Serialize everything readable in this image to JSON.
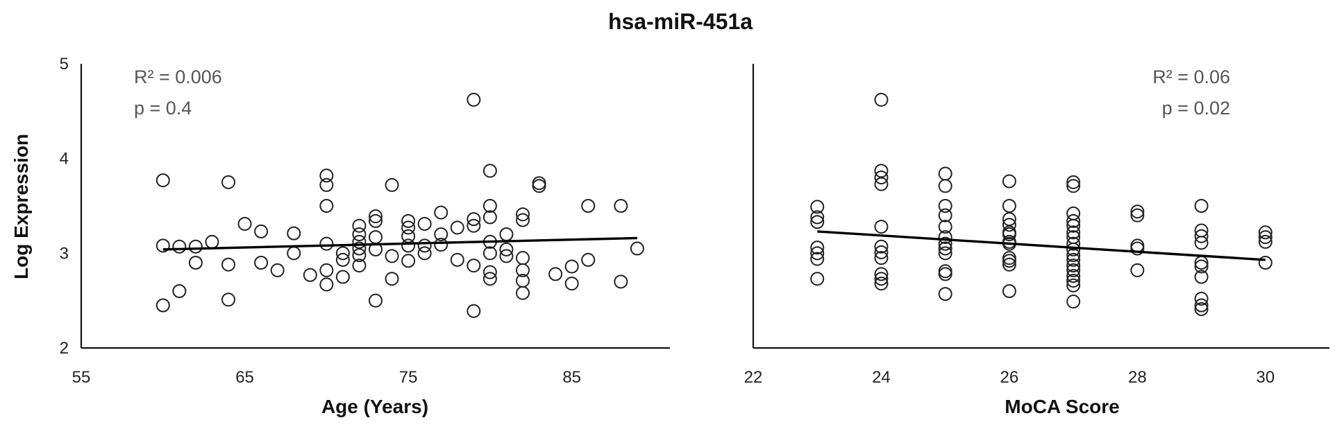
{
  "title": "hsa-miR-451a",
  "chart_data": [
    {
      "type": "scatter",
      "panel": "left",
      "xlabel": "Age (Years)",
      "ylabel": "Log Expression",
      "xlim": [
        55,
        91
      ],
      "ylim": [
        2,
        5
      ],
      "xticks": [
        55,
        65,
        75,
        85
      ],
      "yticks": [
        2,
        3,
        4,
        5
      ],
      "annotation": [
        "R² = 0.006",
        "p = 0.4"
      ],
      "trendline": [
        [
          60,
          3.04
        ],
        [
          89,
          3.16
        ]
      ],
      "points": [
        [
          60,
          3.77
        ],
        [
          60,
          3.08
        ],
        [
          60,
          2.45
        ],
        [
          61,
          3.07
        ],
        [
          61,
          2.6
        ],
        [
          62,
          3.07
        ],
        [
          62,
          2.9
        ],
        [
          63,
          3.12
        ],
        [
          64,
          3.75
        ],
        [
          64,
          2.88
        ],
        [
          64,
          2.51
        ],
        [
          65,
          3.31
        ],
        [
          66,
          3.23
        ],
        [
          66,
          2.9
        ],
        [
          67,
          2.82
        ],
        [
          68,
          3.21
        ],
        [
          68,
          3.0
        ],
        [
          69,
          2.77
        ],
        [
          70,
          3.82
        ],
        [
          70,
          3.72
        ],
        [
          70,
          3.5
        ],
        [
          70,
          3.1
        ],
        [
          70,
          2.82
        ],
        [
          70,
          2.67
        ],
        [
          71,
          3.0
        ],
        [
          71,
          2.93
        ],
        [
          71,
          2.75
        ],
        [
          72,
          3.29
        ],
        [
          72,
          3.2
        ],
        [
          72,
          3.12
        ],
        [
          72,
          3.05
        ],
        [
          72,
          2.98
        ],
        [
          72,
          2.87
        ],
        [
          73,
          3.39
        ],
        [
          73,
          3.34
        ],
        [
          73,
          3.17
        ],
        [
          73,
          3.04
        ],
        [
          73,
          2.5
        ],
        [
          74,
          3.72
        ],
        [
          74,
          2.97
        ],
        [
          74,
          2.73
        ],
        [
          75,
          3.34
        ],
        [
          75,
          3.27
        ],
        [
          75,
          3.18
        ],
        [
          75,
          3.08
        ],
        [
          75,
          2.92
        ],
        [
          76,
          3.31
        ],
        [
          76,
          3.08
        ],
        [
          76,
          3.0
        ],
        [
          77,
          3.43
        ],
        [
          77,
          3.2
        ],
        [
          77,
          3.09
        ],
        [
          78,
          3.27
        ],
        [
          78,
          2.93
        ],
        [
          79,
          4.62
        ],
        [
          79,
          3.36
        ],
        [
          79,
          3.29
        ],
        [
          79,
          2.87
        ],
        [
          79,
          2.39
        ],
        [
          80,
          3.87
        ],
        [
          80,
          3.5
        ],
        [
          80,
          3.38
        ],
        [
          80,
          3.12
        ],
        [
          80,
          3.0
        ],
        [
          80,
          2.8
        ],
        [
          80,
          2.73
        ],
        [
          81,
          3.2
        ],
        [
          81,
          3.04
        ],
        [
          81,
          2.97
        ],
        [
          82,
          3.41
        ],
        [
          82,
          3.35
        ],
        [
          82,
          2.95
        ],
        [
          82,
          2.82
        ],
        [
          82,
          2.71
        ],
        [
          82,
          2.58
        ],
        [
          83,
          3.74
        ],
        [
          83,
          3.71
        ],
        [
          84,
          2.78
        ],
        [
          85,
          2.86
        ],
        [
          85,
          2.68
        ],
        [
          86,
          3.5
        ],
        [
          86,
          2.93
        ],
        [
          88,
          3.5
        ],
        [
          88,
          2.7
        ],
        [
          89,
          3.05
        ]
      ]
    },
    {
      "type": "scatter",
      "panel": "right",
      "xlabel": "MoCA Score",
      "ylabel": "",
      "xlim": [
        22,
        31
      ],
      "ylim": [
        2,
        5
      ],
      "xticks": [
        22,
        24,
        26,
        28,
        30
      ],
      "yticks": [
        2,
        3,
        4,
        5
      ],
      "annotation": [
        "R² = 0.06",
        "p = 0.02"
      ],
      "trendline": [
        [
          23,
          3.23
        ],
        [
          30,
          2.93
        ]
      ],
      "points": [
        [
          23,
          3.49
        ],
        [
          23,
          3.38
        ],
        [
          23,
          3.33
        ],
        [
          23,
          3.06
        ],
        [
          23,
          3.0
        ],
        [
          23,
          2.94
        ],
        [
          23,
          2.73
        ],
        [
          24,
          4.62
        ],
        [
          24,
          3.87
        ],
        [
          24,
          3.8
        ],
        [
          24,
          3.73
        ],
        [
          24,
          3.28
        ],
        [
          24,
          3.07
        ],
        [
          24,
          3.01
        ],
        [
          24,
          2.95
        ],
        [
          24,
          2.78
        ],
        [
          24,
          2.73
        ],
        [
          24,
          2.68
        ],
        [
          25,
          3.84
        ],
        [
          25,
          3.71
        ],
        [
          25,
          3.5
        ],
        [
          25,
          3.4
        ],
        [
          25,
          3.28
        ],
        [
          25,
          3.17
        ],
        [
          25,
          3.1
        ],
        [
          25,
          3.05
        ],
        [
          25,
          3.0
        ],
        [
          25,
          2.81
        ],
        [
          25,
          2.78
        ],
        [
          25,
          2.57
        ],
        [
          26,
          3.76
        ],
        [
          26,
          3.5
        ],
        [
          26,
          3.36
        ],
        [
          26,
          3.3
        ],
        [
          26,
          3.22
        ],
        [
          26,
          3.2
        ],
        [
          26,
          3.12
        ],
        [
          26,
          3.1
        ],
        [
          26,
          2.95
        ],
        [
          26,
          2.92
        ],
        [
          26,
          2.88
        ],
        [
          26,
          2.6
        ],
        [
          27,
          3.75
        ],
        [
          27,
          3.71
        ],
        [
          27,
          3.42
        ],
        [
          27,
          3.34
        ],
        [
          27,
          3.29
        ],
        [
          27,
          3.22
        ],
        [
          27,
          3.17
        ],
        [
          27,
          3.1
        ],
        [
          27,
          3.04
        ],
        [
          27,
          2.98
        ],
        [
          27,
          2.93
        ],
        [
          27,
          2.87
        ],
        [
          27,
          2.82
        ],
        [
          27,
          2.76
        ],
        [
          27,
          2.71
        ],
        [
          27,
          2.66
        ],
        [
          27,
          2.49
        ],
        [
          28,
          3.44
        ],
        [
          28,
          3.4
        ],
        [
          28,
          3.08
        ],
        [
          28,
          3.05
        ],
        [
          28,
          2.82
        ],
        [
          29,
          3.5
        ],
        [
          29,
          3.24
        ],
        [
          29,
          3.18
        ],
        [
          29,
          3.11
        ],
        [
          29,
          2.9
        ],
        [
          29,
          2.86
        ],
        [
          29,
          2.75
        ],
        [
          29,
          2.52
        ],
        [
          29,
          2.45
        ],
        [
          29,
          2.41
        ],
        [
          30,
          3.22
        ],
        [
          30,
          3.17
        ],
        [
          30,
          3.12
        ],
        [
          30,
          2.9
        ]
      ]
    }
  ]
}
